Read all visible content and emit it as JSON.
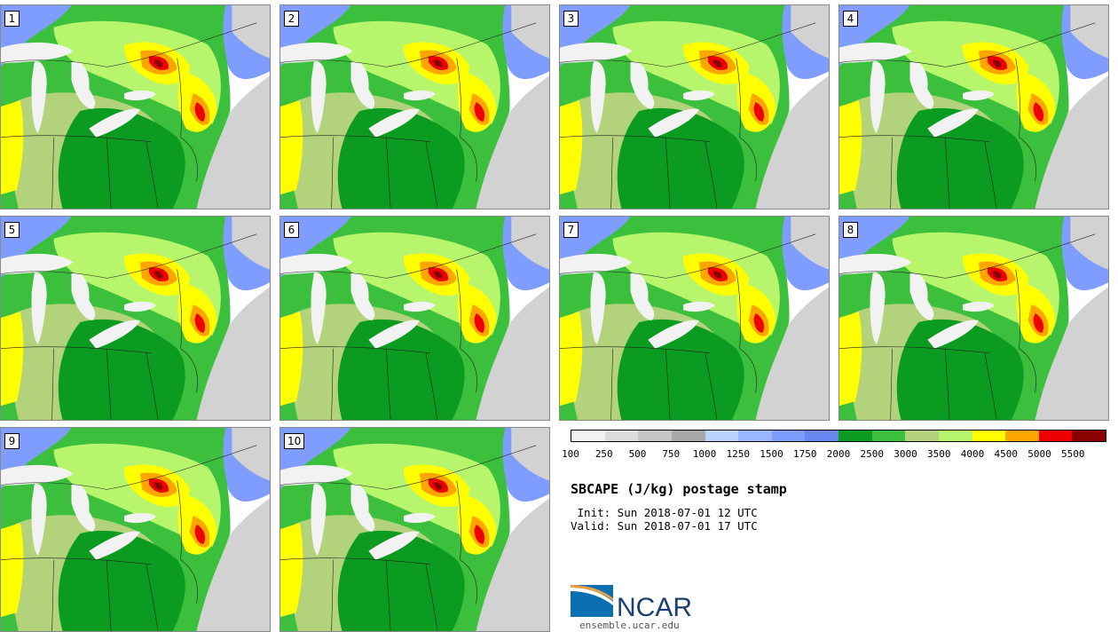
{
  "panels": [
    "1",
    "2",
    "3",
    "4",
    "5",
    "6",
    "7",
    "8",
    "9",
    "10"
  ],
  "colorbar": {
    "tick_labels": [
      "100",
      "250",
      "500",
      "750",
      "1000",
      "1250",
      "1500",
      "1750",
      "2000",
      "2500",
      "3000",
      "3500",
      "4000",
      "4500",
      "5000",
      "5500"
    ],
    "colors": [
      "#f3f3f3",
      "#dcdcdc",
      "#c6c6c6",
      "#a8a8a8",
      "#bcd2ff",
      "#9ab6ff",
      "#7f9dff",
      "#6a86f0",
      "#0b9b21",
      "#3cbf3c",
      "#b2d37b",
      "#b7f56c",
      "#ffff00",
      "#ffa500",
      "#ee0000",
      "#8b0000"
    ]
  },
  "title": "SBCAPE (J/kg) postage stamp",
  "init": " Init: Sun 2018-07-01 12 UTC",
  "valid": "Valid: Sun 2018-07-01 17 UTC",
  "logo_text": "NCAR",
  "site": "ensemble.ucar.edu",
  "colors": {
    "lake_white": "#f2f2f2",
    "ocean_gray": "#d2d2d2",
    "blue_low": "#7f9dff",
    "green_dark": "#0b9b21",
    "green_mid": "#3cbf3c",
    "green_olive": "#b2d37b",
    "green_light": "#b7f56c",
    "yellow": "#ffff00",
    "orange": "#ffa500",
    "red": "#ee0000",
    "darkred": "#8b0000",
    "ncar_blue": "#0a6fb3",
    "ncar_navy": "#1b3f6e"
  }
}
